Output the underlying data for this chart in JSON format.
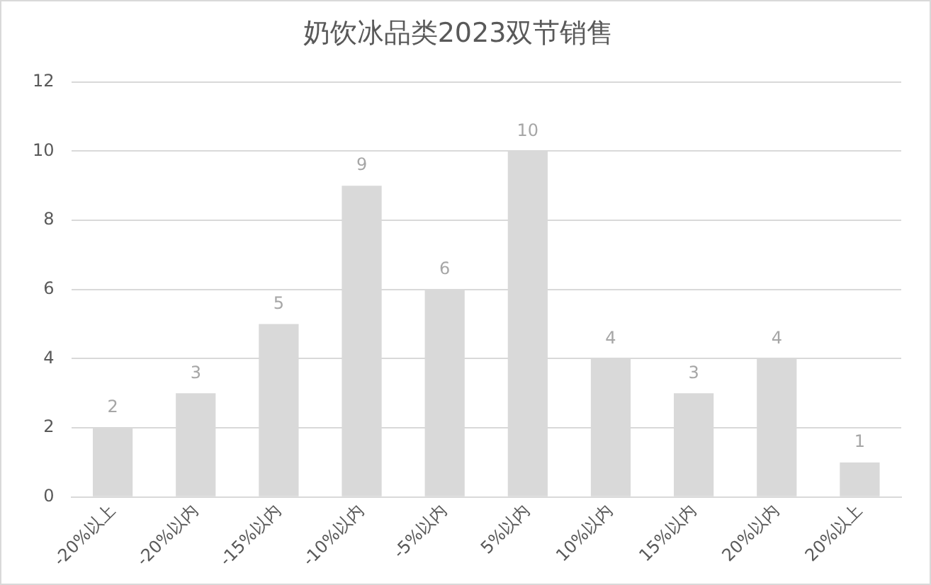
{
  "chart_data": {
    "type": "bar",
    "title": "奶饮冰品类2023双节销售",
    "categories": [
      "-20%以上",
      "-20%以内",
      "-15%以内",
      "-10%以内",
      "-5%以内",
      "5%以内",
      "10%以内",
      "15%以内",
      "20%以内",
      "20%以上"
    ],
    "values": [
      2,
      3,
      5,
      9,
      6,
      10,
      4,
      3,
      4,
      1
    ],
    "color": "#d9d9d9",
    "ylim": [
      0,
      12
    ],
    "yticks": [
      0,
      2,
      4,
      6,
      8,
      10,
      12
    ],
    "grid": "y",
    "data_labels": true,
    "legend": false
  }
}
